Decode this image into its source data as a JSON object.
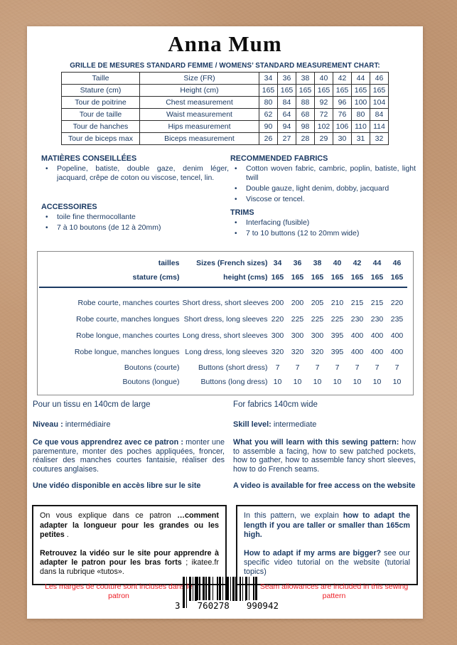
{
  "colors": {
    "navy": "#1b3a63",
    "red": "#ed1c24",
    "kraft": "#c59b78",
    "ink": "#0e0e0e"
  },
  "title": "Anna Mum",
  "size_chart": {
    "heading": "GRILLE DE MESURES STANDARD FEMME  / WOMENS’ STANDARD MEASUREMENT CHART:",
    "rows": [
      {
        "fr": "Taille",
        "en": "Size (FR)",
        "values": [
          "34",
          "36",
          "38",
          "40",
          "42",
          "44",
          "46"
        ]
      },
      {
        "fr": "Stature (cm)",
        "en": "Height (cm)",
        "values": [
          "165",
          "165",
          "165",
          "165",
          "165",
          "165",
          "165"
        ]
      },
      {
        "fr": "Tour de poitrine",
        "en": "Chest measurement",
        "values": [
          "80",
          "84",
          "88",
          "92",
          "96",
          "100",
          "104"
        ]
      },
      {
        "fr": "Tour de taille",
        "en": "Waist measurement",
        "values": [
          "62",
          "64",
          "68",
          "72",
          "76",
          "80",
          "84"
        ]
      },
      {
        "fr": "Tour de hanches",
        "en": "Hips measurement",
        "values": [
          "90",
          "94",
          "98",
          "102",
          "106",
          "110",
          "114"
        ]
      },
      {
        "fr": "Tour de biceps max",
        "en": "Biceps measurement",
        "values": [
          "26",
          "27",
          "28",
          "29",
          "30",
          "31",
          "32"
        ]
      }
    ]
  },
  "materials_fr": {
    "heading": "MATIÈRES CONSEILLÉES",
    "bullets": [
      "Popeline, batiste, double gaze, denim léger, jacquard, crêpe de coton ou viscose, tencel, lin."
    ]
  },
  "fabrics_en": {
    "heading": "RECOMMENDED FABRICS",
    "bullets": [
      "Cotton woven fabric, cambric, poplin, batiste, light twill",
      "Double gauze, light denim, dobby, jacquard",
      "Viscose or tencel."
    ]
  },
  "accessories_fr": {
    "heading": "ACCESSOIRES",
    "bullets": [
      "toile fine thermocollante",
      "7 à 10 boutons (de 12 à 20mm)"
    ]
  },
  "trims_en": {
    "heading": "TRIMS",
    "bullets": [
      "Interfacing (fusible)",
      "7 to 10 buttons (12 to 20mm wide)"
    ]
  },
  "fabric_table": {
    "header_rows": [
      {
        "fr": "tailles",
        "en": "Sizes (French sizes)",
        "values": [
          "34",
          "36",
          "38",
          "40",
          "42",
          "44",
          "46"
        ]
      },
      {
        "fr": "stature (cms)",
        "en": "height (cms)",
        "values": [
          "165",
          "165",
          "165",
          "165",
          "165",
          "165",
          "165"
        ]
      }
    ],
    "rows": [
      {
        "fr": "Robe courte, manches courtes",
        "en": "Short dress, short sleeves",
        "values": [
          "200",
          "200",
          "205",
          "210",
          "215",
          "215",
          "220"
        ],
        "compact": false
      },
      {
        "fr": "Robe courte, manches longues",
        "en": "Short dress, long sleeves",
        "values": [
          "220",
          "225",
          "225",
          "225",
          "230",
          "230",
          "235"
        ],
        "compact": false
      },
      {
        "fr": "Robe longue, manches courtes",
        "en": "Long dress, short sleeves",
        "values": [
          "300",
          "300",
          "300",
          "395",
          "400",
          "400",
          "400"
        ],
        "compact": false
      },
      {
        "fr": "Robe longue, manches longues",
        "en": "Long dress, long sleeves",
        "values": [
          "320",
          "320",
          "320",
          "395",
          "400",
          "400",
          "400"
        ],
        "compact": false
      },
      {
        "fr": "Boutons  (courte)",
        "en": "Buttons (short dress)",
        "values": [
          "7",
          "7",
          "7",
          "7",
          "7",
          "7",
          "7"
        ],
        "compact": true
      },
      {
        "fr": "Boutons (longue)",
        "en": "Buttons (long dress)",
        "values": [
          "10",
          "10",
          "10",
          "10",
          "10",
          "10",
          "10"
        ],
        "compact": true
      }
    ]
  },
  "fabric_width": {
    "fr": "Pour un tissu en 140cm de large",
    "en": "For fabrics 140cm wide"
  },
  "level": {
    "fr_label": "Niveau :",
    "fr_value": " intermédiaire",
    "en_label": "Skill level:",
    "en_value": " intermediate"
  },
  "learn": {
    "fr_bold": "Ce que vous apprendrez avec ce patron :",
    "fr_text": " monter une parementure,  monter des poches appliquées, froncer, réaliser des manches courtes fantaisie, réaliser des coutures anglaises.",
    "en_bold": "What you will learn with this sewing pattern:",
    "en_text": " how to assemble a facing, how to sew patched pockets, how to gather, how to assemble fancy short sleeves, how to do French seams."
  },
  "video": {
    "fr": "Une vidéo disponible en accès libre sur le site",
    "en": "A video is available for free access on the website"
  },
  "tip_box_fr": {
    "p1_normal": "On vous explique dans ce patron ",
    "p1_bold": "…comment adapter la longueur pour les grandes ou les petites",
    "p1_end": " .",
    "p2_bold": "Retrouvez la vidéo sur le site pour apprendre à adapter le patron pour les bras forts",
    "p2_normal": " ; ikatee.fr dans la rubrique «tutos»."
  },
  "tip_box_en": {
    "p1_normal": "In this pattern, we explain ",
    "p1_bold": "how to adapt the length if you are taller or smaller than 165cm high.",
    "p2_bold": "How to adapt if my arms are bigger?",
    "p2_normal": " see our specific video tutorial on the website (tutorial topics)"
  },
  "footer": {
    "seam_note_fr": "Les marges de couture sont incluses dans le patron",
    "seam_note_en": "Seam allowances are included in this sewing pattern",
    "barcode_left_digit": "3",
    "barcode_group1": "760278",
    "barcode_group2": "990942"
  }
}
